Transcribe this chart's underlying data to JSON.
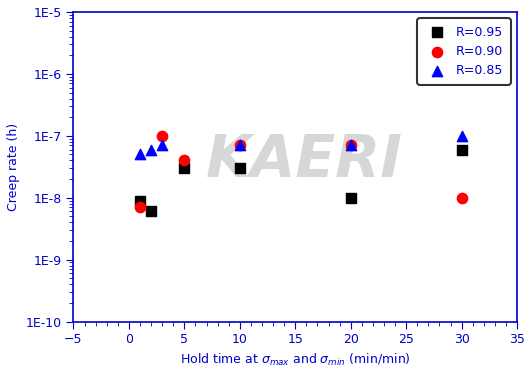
{
  "series": [
    {
      "label": "R=0.95",
      "color": "black",
      "marker": "s",
      "x": [
        1,
        2,
        5,
        10,
        20,
        30
      ],
      "y": [
        9e-09,
        6e-09,
        3e-08,
        3e-08,
        1e-08,
        6e-08
      ]
    },
    {
      "label": "R=0.90",
      "color": "red",
      "marker": "o",
      "x": [
        1,
        3,
        5,
        10,
        20,
        30
      ],
      "y": [
        7e-09,
        1e-07,
        4e-08,
        7e-08,
        7e-08,
        1e-08
      ]
    },
    {
      "label": "R=0.85",
      "color": "blue",
      "marker": "^",
      "x": [
        1,
        2,
        3,
        10,
        20,
        30
      ],
      "y": [
        5e-08,
        6e-08,
        7e-08,
        7e-08,
        7e-08,
        1e-07
      ]
    }
  ],
  "xlabel": "Hold time at $\\sigma_{max}$ and $\\sigma_{min}$ (min/min)",
  "ylabel": "Creep rate (h)",
  "xlim": [
    -5,
    35
  ],
  "ylim": [
    1e-10,
    1e-05
  ],
  "xticks": [
    -5,
    0,
    5,
    10,
    15,
    20,
    25,
    30,
    35
  ],
  "ytick_labels": [
    "1E-10",
    "1E-9",
    "1E-8",
    "1E-7",
    "1E-6",
    "1E-5"
  ],
  "ytick_values": [
    1e-10,
    1e-09,
    1e-08,
    1e-07,
    1e-06,
    1e-05
  ],
  "watermark": "KAERI",
  "axis_color": "#0000CD",
  "legend_text_color": "#0000CD",
  "figsize": [
    5.32,
    3.75
  ],
  "dpi": 100
}
